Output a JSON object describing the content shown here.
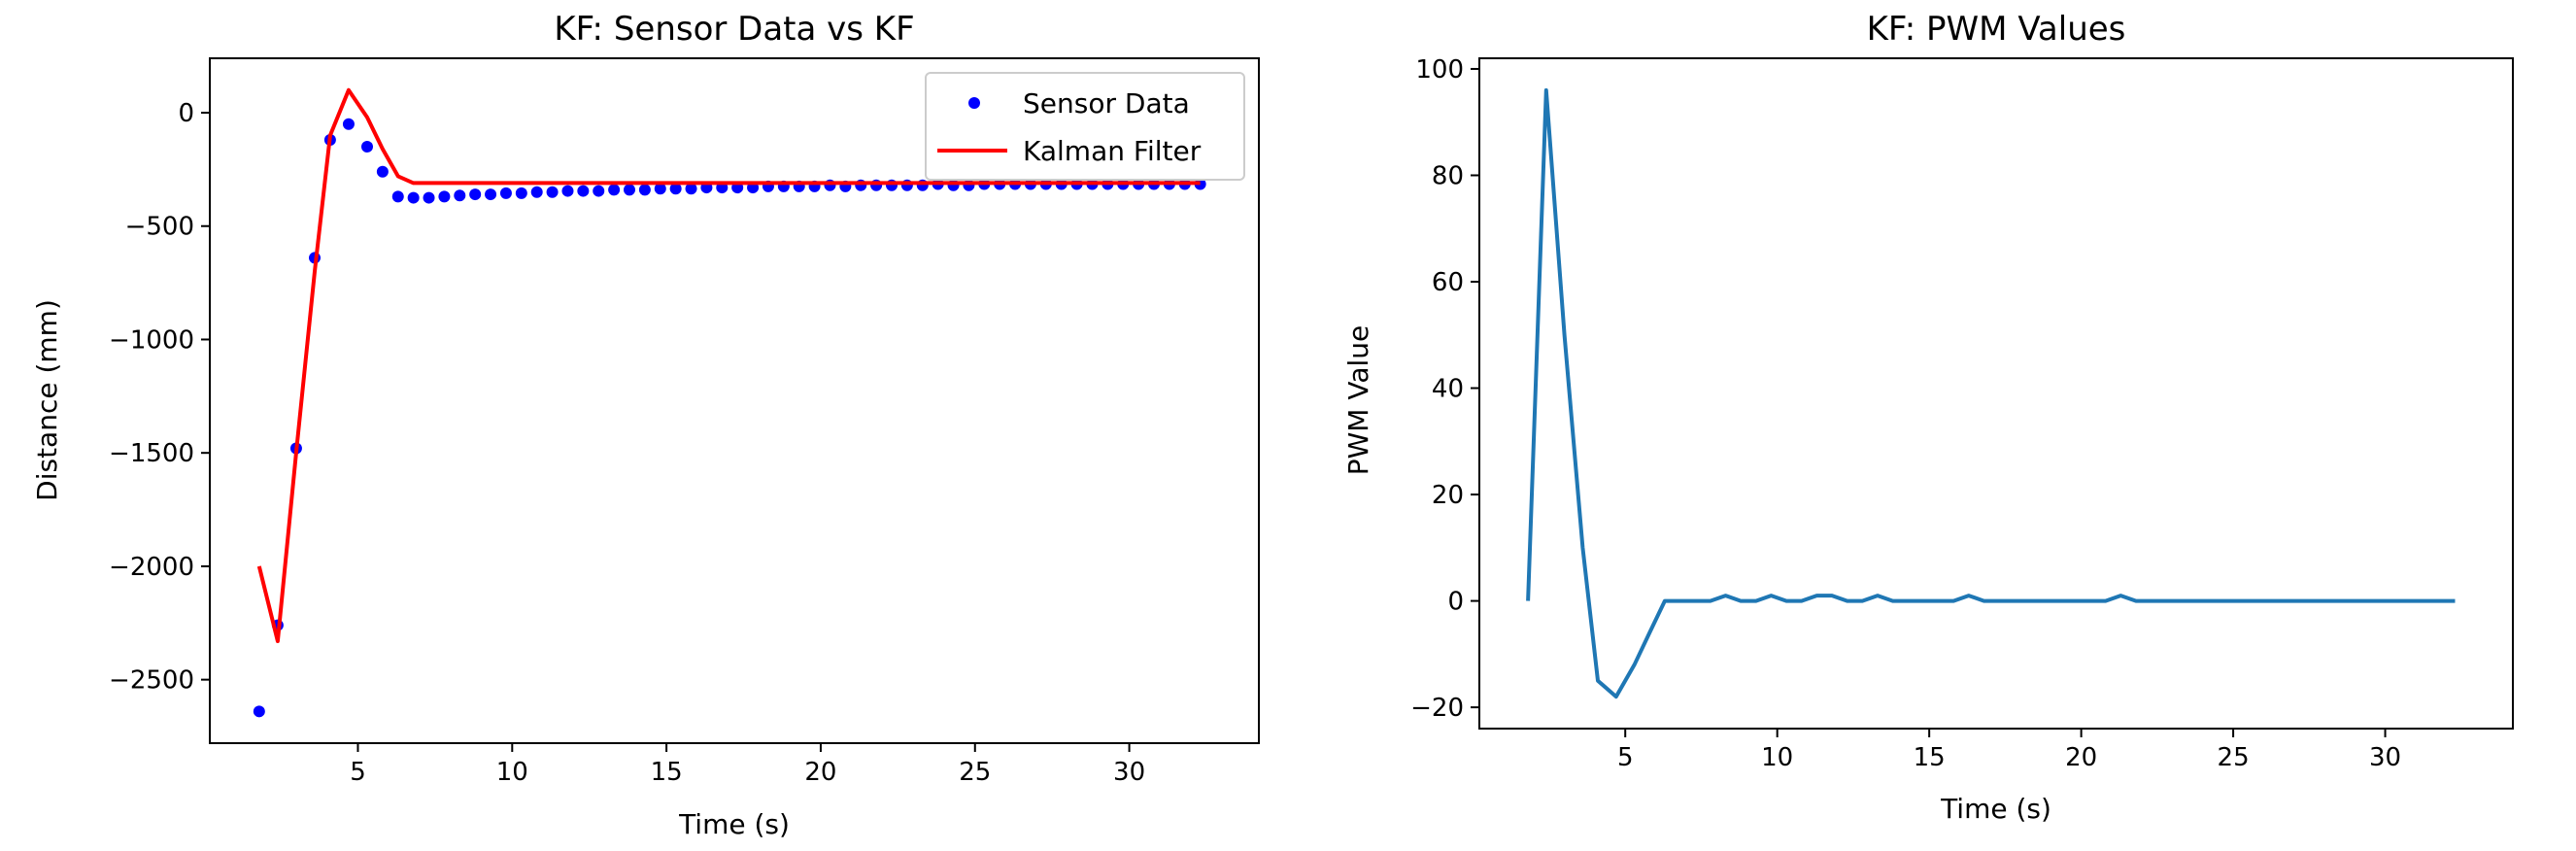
{
  "chart_data": [
    {
      "type": "line",
      "title": "KF: Sensor Data vs KF",
      "xlabel": "Time (s)",
      "ylabel": "Distance (mm)",
      "xlim": [
        0.2,
        34.2
      ],
      "ylim": [
        -2780,
        240
      ],
      "xticks": [
        5,
        10,
        15,
        20,
        25,
        30
      ],
      "yticks": [
        0,
        -500,
        -1000,
        -1500,
        -2000,
        -2500
      ],
      "xtick_labels": [
        "5",
        "10",
        "15",
        "20",
        "25",
        "30"
      ],
      "ytick_labels": [
        "0",
        "−500",
        "−1000",
        "−1500",
        "−2000",
        "−2500"
      ],
      "grid": false,
      "legend": {
        "placement": "upper right",
        "entries": [
          "Sensor Data",
          "Kalman Filter"
        ]
      },
      "series": [
        {
          "name": "Sensor Data",
          "marker": "dot",
          "color": "#0000ff",
          "x": [
            1.8,
            2.4,
            3.0,
            3.6,
            4.1,
            4.7,
            5.3,
            5.8,
            6.3,
            6.8,
            7.3,
            7.8,
            8.3,
            8.8,
            9.3,
            9.8,
            10.3,
            10.8,
            11.3,
            11.8,
            12.3,
            12.8,
            13.3,
            13.8,
            14.3,
            14.8,
            15.3,
            15.8,
            16.3,
            16.8,
            17.3,
            17.8,
            18.3,
            18.8,
            19.3,
            19.8,
            20.3,
            20.8,
            21.3,
            21.8,
            22.3,
            22.8,
            23.3,
            23.8,
            24.3,
            24.8,
            25.3,
            25.8,
            26.3,
            26.8,
            27.3,
            27.8,
            28.3,
            28.8,
            29.3,
            29.8,
            30.3,
            30.8,
            31.3,
            31.8,
            32.3
          ],
          "y": [
            -2640,
            -2260,
            -1480,
            -640,
            -120,
            -50,
            -150,
            -260,
            -370,
            -375,
            -375,
            -370,
            -365,
            -360,
            -360,
            -355,
            -355,
            -350,
            -350,
            -345,
            -345,
            -345,
            -340,
            -340,
            -340,
            -335,
            -335,
            -335,
            -330,
            -330,
            -330,
            -330,
            -325,
            -325,
            -325,
            -325,
            -320,
            -325,
            -320,
            -320,
            -320,
            -320,
            -320,
            -315,
            -320,
            -320,
            -315,
            -315,
            -315,
            -315,
            -315,
            -315,
            -315,
            -315,
            -315,
            -315,
            -315,
            -315,
            -315,
            -315,
            -315
          ]
        },
        {
          "name": "Kalman Filter",
          "marker": "line",
          "color": "#ff0000",
          "x": [
            1.8,
            2.4,
            3.0,
            3.6,
            4.1,
            4.7,
            5.3,
            5.8,
            6.3,
            6.8,
            8.0,
            10.0,
            12.0,
            15.0,
            20.0,
            25.0,
            30.0,
            32.3
          ],
          "y": [
            -2000,
            -2330,
            -1500,
            -700,
            -100,
            100,
            -20,
            -160,
            -280,
            -310,
            -310,
            -310,
            -310,
            -310,
            -310,
            -310,
            -310,
            -310
          ]
        }
      ]
    },
    {
      "type": "line",
      "title": "KF: PWM Values",
      "xlabel": "Time (s)",
      "ylabel": "PWM Value",
      "xlim": [
        0.2,
        34.2
      ],
      "ylim": [
        -24,
        102
      ],
      "xticks": [
        5,
        10,
        15,
        20,
        25,
        30
      ],
      "yticks": [
        100,
        80,
        60,
        40,
        20,
        0,
        -20
      ],
      "xtick_labels": [
        "5",
        "10",
        "15",
        "20",
        "25",
        "30"
      ],
      "ytick_labels": [
        "100",
        "80",
        "60",
        "40",
        "20",
        "0",
        "−20"
      ],
      "grid": false,
      "series": [
        {
          "color": "#1f77b4",
          "x": [
            1.8,
            2.4,
            3.0,
            3.6,
            4.1,
            4.7,
            5.3,
            5.8,
            6.3,
            6.8,
            7.3,
            7.8,
            8.3,
            8.8,
            9.3,
            9.8,
            10.3,
            10.8,
            11.3,
            11.8,
            12.3,
            12.8,
            13.3,
            13.8,
            14.3,
            14.8,
            15.3,
            15.8,
            16.3,
            16.8,
            17.3,
            17.8,
            18.3,
            18.8,
            19.3,
            19.8,
            20.3,
            20.8,
            21.3,
            21.8,
            22.3,
            25.0,
            30.0,
            32.3
          ],
          "y": [
            0,
            96,
            50,
            10,
            -15,
            -18,
            -12,
            -6,
            0,
            0,
            0,
            0,
            1,
            0,
            0,
            1,
            0,
            0,
            1,
            1,
            0,
            0,
            1,
            0,
            0,
            0,
            0,
            0,
            1,
            0,
            0,
            0,
            0,
            0,
            0,
            0,
            0,
            0,
            1,
            0,
            0,
            0,
            0,
            0
          ]
        }
      ]
    }
  ]
}
